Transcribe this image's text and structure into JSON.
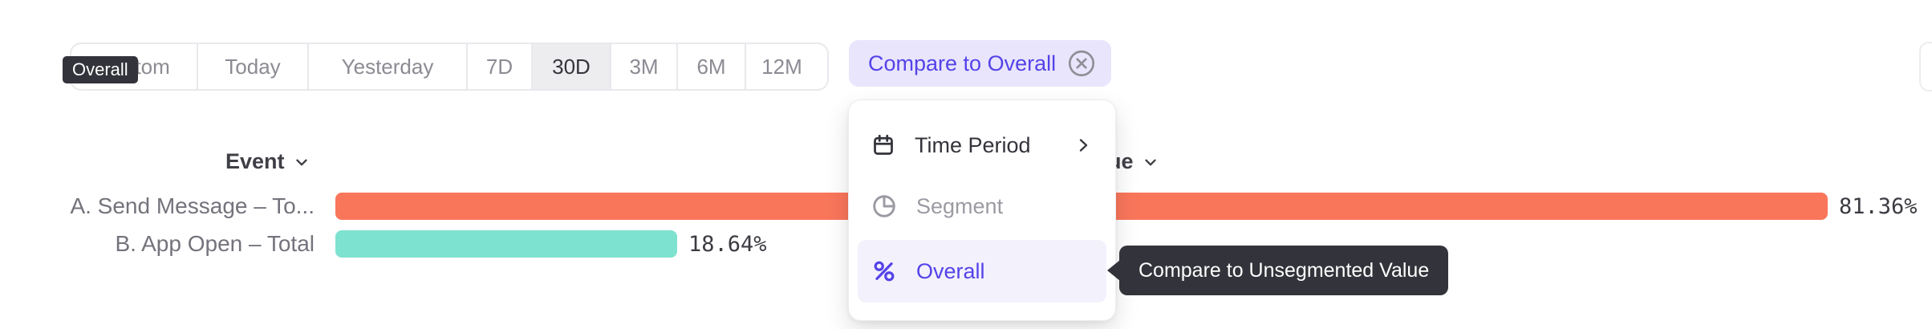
{
  "overall_tooltip": {
    "label": "Overall"
  },
  "time_range": {
    "options": [
      "Custom",
      "Today",
      "Yesterday",
      "7D",
      "30D",
      "3M",
      "6M",
      "12M"
    ],
    "selected": "30D"
  },
  "compare_button": {
    "label": "Compare to Overall",
    "close_icon": "circle-x-icon"
  },
  "table_headers": {
    "event": "Event",
    "value": "Value"
  },
  "chart_data": {
    "type": "bar",
    "orientation": "horizontal",
    "categories": [
      "A. Send Message – To...",
      "B. App Open – Total"
    ],
    "values": [
      81.36,
      18.64
    ],
    "value_labels": [
      "81.36%",
      "18.64%"
    ],
    "series_colors": [
      "#F9765B",
      "#7EE2D0"
    ],
    "unit": "%",
    "xlim": [
      0,
      81.36
    ],
    "grid": false,
    "legend": false
  },
  "dropdown_menu": {
    "items": [
      {
        "label": "Time Period",
        "icon": "calendar-icon",
        "has_submenu": true
      },
      {
        "label": "Segment",
        "icon": "segment-icon",
        "disabled": true
      },
      {
        "label": "Overall",
        "icon": "percent-icon",
        "selected": true
      }
    ]
  },
  "compare_tooltip": {
    "label": "Compare to Unsegmented Value"
  },
  "colors": {
    "accent_purple": "#5443e8",
    "accent_purple_bg": "#e9e5fc",
    "menu_highlight": "#f3f1fc",
    "tooltip_dark": "#33333b",
    "bar_orange": "#F9765B",
    "bar_teal": "#7EE2D0",
    "border_gray": "#e9e9ed",
    "text_gray": "#8b8b93"
  }
}
